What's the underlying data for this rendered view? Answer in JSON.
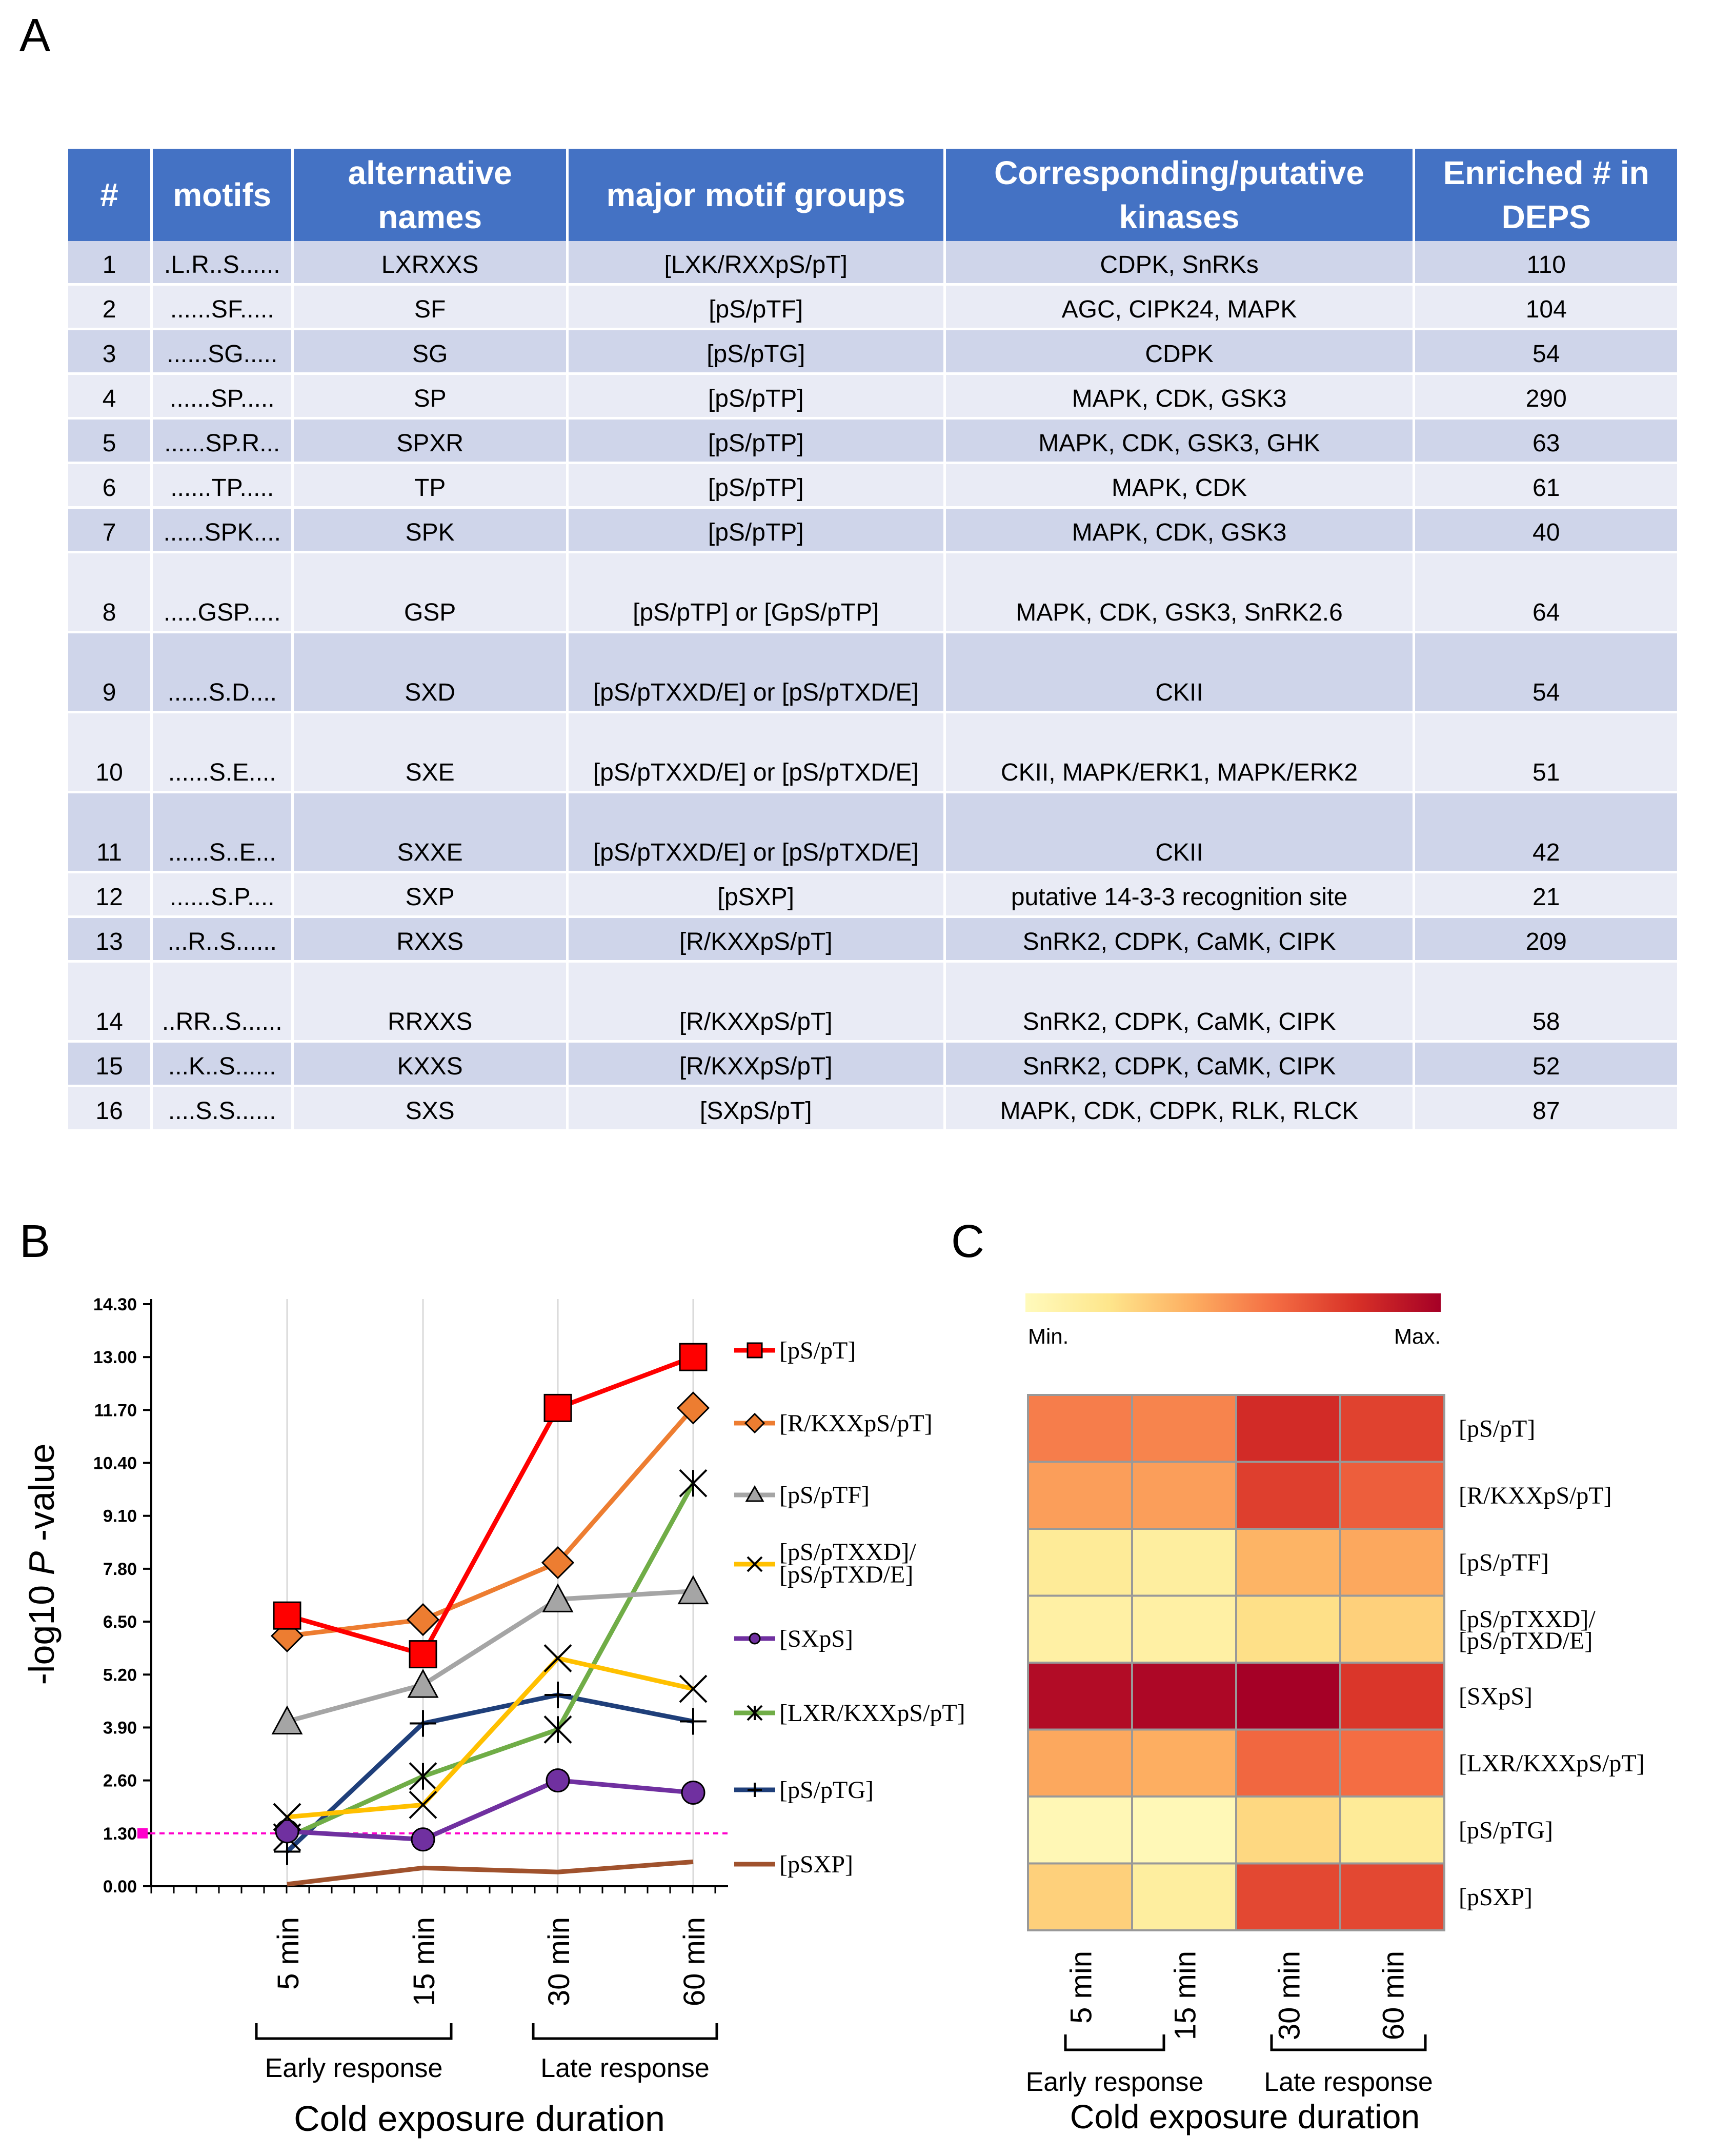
{
  "panels": {
    "a": "A",
    "b": "B",
    "c": "C"
  },
  "table": {
    "headers": [
      "#",
      "motifs",
      "alternative names",
      "major motif groups",
      "Corresponding/putative kinases",
      "Enriched # in DEPS"
    ],
    "rows": [
      {
        "num": "1",
        "motif": ".L.R..S......",
        "alt": "LXRXXS",
        "group": "[LXK/RXXpS/pT]",
        "kinases": "CDPK, SnRKs",
        "enriched": "110",
        "tall": false
      },
      {
        "num": "2",
        "motif": "......SF.....",
        "alt": "SF",
        "group": "[pS/pTF]",
        "kinases": "AGC, CIPK24, MAPK",
        "enriched": "104",
        "tall": false
      },
      {
        "num": "3",
        "motif": "......SG.....",
        "alt": "SG",
        "group": "[pS/pTG]",
        "kinases": "CDPK",
        "enriched": "54",
        "tall": false
      },
      {
        "num": "4",
        "motif": "......SP.....",
        "alt": "SP",
        "group": "[pS/pTP]",
        "kinases": "MAPK, CDK, GSK3",
        "enriched": "290",
        "tall": false
      },
      {
        "num": "5",
        "motif": "......SP.R...",
        "alt": "SPXR",
        "group": "[pS/pTP]",
        "kinases": "MAPK, CDK, GSK3, GHK",
        "enriched": "63",
        "tall": false
      },
      {
        "num": "6",
        "motif": "......TP.....",
        "alt": "TP",
        "group": "[pS/pTP]",
        "kinases": "MAPK, CDK",
        "enriched": "61",
        "tall": false
      },
      {
        "num": "7",
        "motif": "......SPK....",
        "alt": "SPK",
        "group": "[pS/pTP]",
        "kinases": "MAPK, CDK, GSK3",
        "enriched": "40",
        "tall": false
      },
      {
        "num": "8",
        "motif": ".....GSP.....",
        "alt": "GSP",
        "group": "[pS/pTP] or [GpS/pTP]",
        "kinases": "MAPK, CDK, GSK3, SnRK2.6",
        "enriched": "64",
        "tall": true
      },
      {
        "num": "9",
        "motif": "......S.D....",
        "alt": "SXD",
        "group": "[pS/pTXXD/E] or [pS/pTXD/E]",
        "kinases": "CKII",
        "enriched": "54",
        "tall": true
      },
      {
        "num": "10",
        "motif": "......S.E....",
        "alt": "SXE",
        "group": "[pS/pTXXD/E] or [pS/pTXD/E]",
        "kinases": "CKII, MAPK/ERK1, MAPK/ERK2",
        "enriched": "51",
        "tall": true
      },
      {
        "num": "11",
        "motif": "......S..E...",
        "alt": "SXXE",
        "group": "[pS/pTXXD/E] or [pS/pTXD/E]",
        "kinases": "CKII",
        "enriched": "42",
        "tall": true
      },
      {
        "num": "12",
        "motif": "......S.P....",
        "alt": "SXP",
        "group": "[pSXP]",
        "kinases": "putative 14-3-3 recognition site",
        "enriched": "21",
        "tall": false
      },
      {
        "num": "13",
        "motif": "...R..S......",
        "alt": "RXXS",
        "group": "[R/KXXpS/pT]",
        "kinases": "SnRK2, CDPK, CaMK, CIPK",
        "enriched": "209",
        "tall": false
      },
      {
        "num": "14",
        "motif": "..RR..S......",
        "alt": "RRXXS",
        "group": "[R/KXXpS/pT]",
        "kinases": "SnRK2, CDPK, CaMK, CIPK",
        "enriched": "58",
        "tall": true
      },
      {
        "num": "15",
        "motif": "...K..S......",
        "alt": "KXXS",
        "group": "[R/KXXpS/pT]",
        "kinases": "SnRK2, CDPK, CaMK, CIPK",
        "enriched": "52",
        "tall": false
      },
      {
        "num": "16",
        "motif": "....S.S......",
        "alt": "SXS",
        "group": "[SXpS/pT]",
        "kinases": "MAPK, CDK, CDPK, RLK, RLCK",
        "enriched": "87",
        "tall": false
      }
    ]
  },
  "chart_data": [
    {
      "type": "line",
      "panel": "B",
      "ylabel": "-log10 P -value",
      "ylabel_prefix": "-log10 ",
      "ylabel_italic": "P",
      "ylabel_suffix": " -value",
      "xlabel": "Cold exposure duration",
      "categories": [
        "5 min",
        "15 min",
        "30 min",
        "60 min"
      ],
      "groups": [
        "Early response",
        "Late response"
      ],
      "ylim": [
        0,
        14.3
      ],
      "yticks": [
        "0.00",
        "1.30",
        "2.60",
        "3.90",
        "5.20",
        "6.50",
        "7.80",
        "9.10",
        "10.40",
        "11.70",
        "13.00",
        "14.30"
      ],
      "threshold": 1.3,
      "legend_position": "right",
      "series": [
        {
          "name": "[pS/pT]",
          "color": "#ff0000",
          "marker": "square",
          "values": [
            6.65,
            5.7,
            11.75,
            13.0
          ]
        },
        {
          "name": "[R/KXXpS/pT]",
          "color": "#ed7d31",
          "marker": "diamond",
          "values": [
            6.15,
            6.55,
            7.95,
            11.75
          ]
        },
        {
          "name": "[pS/pTF]",
          "color": "#a5a5a5",
          "marker": "triangle",
          "values": [
            4.05,
            4.95,
            7.05,
            7.25
          ]
        },
        {
          "name": "[pS/pTXXD]/[pS/pTXD/E]",
          "color": "#ffc000",
          "marker": "x",
          "values": [
            1.7,
            2.0,
            5.6,
            4.85
          ]
        },
        {
          "name": "[SXpS]",
          "color": "#7030a0",
          "marker": "circle",
          "values": [
            1.35,
            1.15,
            2.6,
            2.3
          ]
        },
        {
          "name": "[LXR/KXXpS/pT]",
          "color": "#70ad47",
          "marker": "star",
          "values": [
            1.2,
            2.7,
            3.85,
            9.9
          ]
        },
        {
          "name": "[pS/pTG]",
          "color": "#1f3f7a",
          "marker": "plus",
          "values": [
            0.85,
            4.0,
            4.7,
            4.05
          ]
        },
        {
          "name": "[pSXP]",
          "color": "#a0522d",
          "marker": "none",
          "values": [
            0.05,
            0.45,
            0.35,
            0.6
          ]
        }
      ]
    },
    {
      "type": "heatmap",
      "panel": "C",
      "xlabel": "Cold exposure duration",
      "categories": [
        "5 min",
        "15 min",
        "30 min",
        "60 min"
      ],
      "groups": [
        "Early response",
        "Late response"
      ],
      "scale_min_label": "Min.",
      "scale_max_label": "Max.",
      "rows": [
        "[pS/pT]",
        "[R/KXXpS/pT]",
        "[pS/pTF]",
        "[pS/pTXXD]/[pS/pTXD/E]",
        "[SXpS]",
        "[LXR/KXXpS/pT]",
        "[pS/pTG]",
        "[pSXP]"
      ],
      "values": [
        [
          0.55,
          0.53,
          0.82,
          0.74
        ],
        [
          0.45,
          0.45,
          0.75,
          0.65
        ],
        [
          0.15,
          0.12,
          0.38,
          0.42
        ],
        [
          0.1,
          0.1,
          0.22,
          0.28
        ],
        [
          0.95,
          0.97,
          1.0,
          0.78
        ],
        [
          0.42,
          0.4,
          0.62,
          0.6
        ],
        [
          0.03,
          0.02,
          0.25,
          0.15
        ],
        [
          0.28,
          0.12,
          0.72,
          0.72
        ]
      ]
    }
  ]
}
